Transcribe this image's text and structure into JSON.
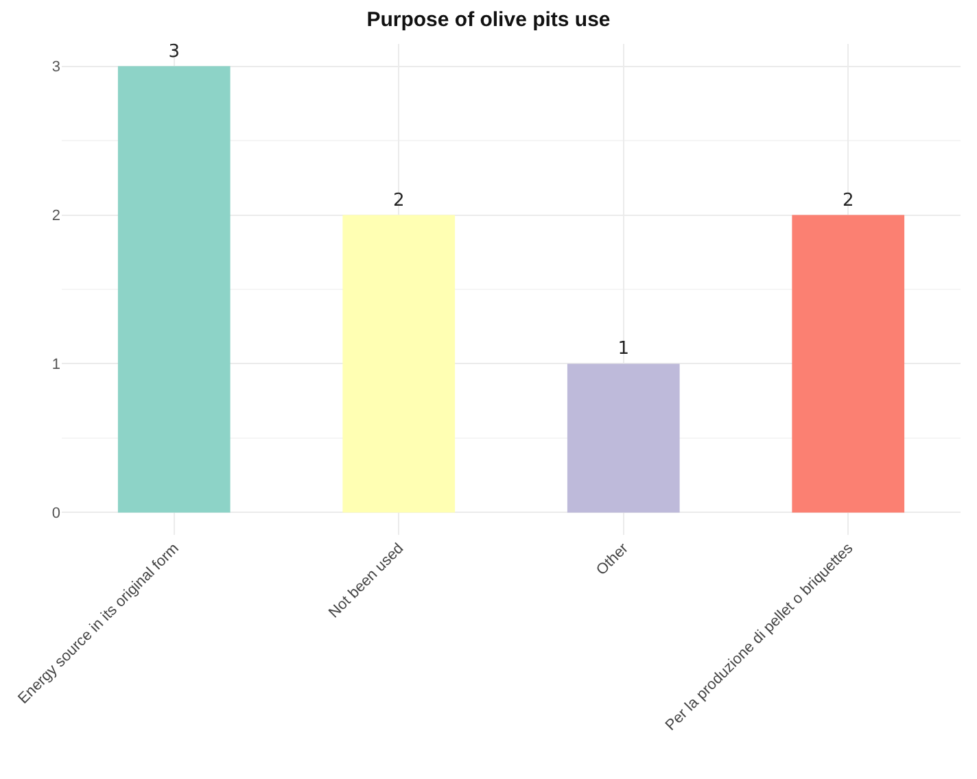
{
  "chart_data": {
    "type": "bar",
    "title": "Purpose of olive pits use",
    "categories": [
      "Energy source in its original form",
      "Not been used",
      "Other",
      "Per la produzione di pellet o briquettes"
    ],
    "values": [
      3,
      2,
      1,
      2
    ],
    "colors": [
      "#8dd3c7",
      "#ffffb3",
      "#bebada",
      "#fb8072"
    ],
    "ylim": [
      -0.15,
      3.15
    ],
    "yticks": [
      0,
      1,
      2,
      3
    ],
    "grid": true,
    "data_labels": true
  }
}
